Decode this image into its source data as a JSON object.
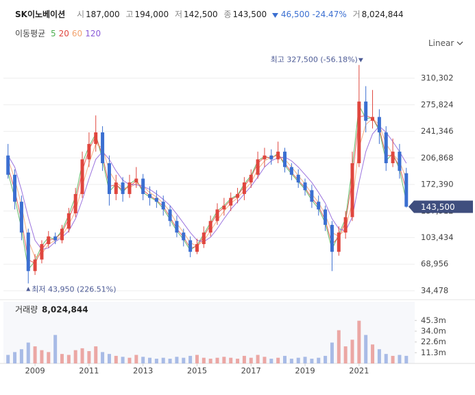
{
  "chart_data": {
    "type": "candlestick",
    "title": "SK이노베이션",
    "quote": [
      {
        "label": "시",
        "value": "187,000"
      },
      {
        "label": "고",
        "value": "194,000"
      },
      {
        "label": "저",
        "value": "142,500"
      },
      {
        "label": "종",
        "value": "143,500"
      }
    ],
    "change": "46,500",
    "change_pct": "-24.47%",
    "volume_short_label": "거",
    "volume_total": "8,024,844",
    "legend_title": "이동평균",
    "scale_label": "Linear",
    "annotations": [
      "최고 327,500 (-56.18%)",
      "최저 43,950 (226.51%)"
    ],
    "colors": {
      "up": "#e0463e",
      "down": "#3b6fd1",
      "up_volume": "#eba7a4",
      "down_volume": "#a8bbe6"
    },
    "x": [
      2008.0,
      2008.25,
      2008.5,
      2008.75,
      2009.0,
      2009.25,
      2009.5,
      2009.75,
      2010.0,
      2010.25,
      2010.5,
      2010.75,
      2011.0,
      2011.25,
      2011.5,
      2011.75,
      2012.0,
      2012.25,
      2012.5,
      2012.75,
      2013.0,
      2013.25,
      2013.5,
      2013.75,
      2014.0,
      2014.25,
      2014.5,
      2014.75,
      2015.0,
      2015.25,
      2015.5,
      2015.75,
      2016.0,
      2016.25,
      2016.5,
      2016.75,
      2017.0,
      2017.25,
      2017.5,
      2017.75,
      2018.0,
      2018.25,
      2018.5,
      2018.75,
      2019.0,
      2019.25,
      2019.5,
      2019.75,
      2020.0,
      2020.25,
      2020.5,
      2020.75,
      2021.0,
      2021.25,
      2021.5,
      2021.75,
      2022.0,
      2022.25,
      2022.5,
      2022.75
    ],
    "open": [
      210000,
      185000,
      150000,
      110000,
      60000,
      75000,
      95000,
      105000,
      100000,
      115000,
      135000,
      160000,
      205000,
      225000,
      240000,
      200000,
      160000,
      175000,
      160000,
      175000,
      180000,
      160000,
      155000,
      150000,
      140000,
      125000,
      110000,
      100000,
      85000,
      95000,
      110000,
      125000,
      140000,
      145000,
      155000,
      160000,
      175000,
      185000,
      205000,
      210000,
      205000,
      215000,
      195000,
      185000,
      175000,
      165000,
      150000,
      140000,
      120000,
      85000,
      110000,
      130000,
      200000,
      280000,
      255000,
      260000,
      240000,
      200000,
      215000,
      187000
    ],
    "high": [
      225000,
      192000,
      158000,
      115000,
      82000,
      100000,
      112000,
      110000,
      120000,
      142000,
      168000,
      215000,
      240000,
      262000,
      248000,
      210000,
      185000,
      182000,
      185000,
      195000,
      186000,
      170000,
      165000,
      158000,
      145000,
      132000,
      115000,
      105000,
      102000,
      118000,
      132000,
      148000,
      155000,
      162000,
      168000,
      182000,
      192000,
      215000,
      220000,
      218000,
      228000,
      220000,
      200000,
      192000,
      180000,
      172000,
      158000,
      145000,
      125000,
      118000,
      138000,
      215000,
      327500,
      300000,
      295000,
      270000,
      248000,
      232000,
      225000,
      194000
    ],
    "low": [
      180000,
      140000,
      100000,
      43950,
      55000,
      70000,
      90000,
      95000,
      96000,
      110000,
      130000,
      155000,
      195000,
      215000,
      190000,
      145000,
      152000,
      150000,
      155000,
      168000,
      152000,
      145000,
      142000,
      132000,
      118000,
      104000,
      92000,
      78000,
      82000,
      90000,
      105000,
      120000,
      132000,
      138000,
      148000,
      152000,
      168000,
      180000,
      195000,
      198000,
      200000,
      188000,
      178000,
      168000,
      158000,
      142000,
      132000,
      112000,
      60000,
      80000,
      102000,
      125000,
      195000,
      240000,
      245000,
      225000,
      190000,
      195000,
      180000,
      142500
    ],
    "close": [
      185000,
      150000,
      110000,
      60000,
      75000,
      95000,
      105000,
      100000,
      115000,
      135000,
      160000,
      205000,
      225000,
      240000,
      200000,
      160000,
      175000,
      160000,
      175000,
      180000,
      160000,
      155000,
      150000,
      140000,
      125000,
      110000,
      100000,
      85000,
      95000,
      110000,
      125000,
      140000,
      145000,
      155000,
      160000,
      175000,
      185000,
      205000,
      210000,
      205000,
      215000,
      195000,
      185000,
      175000,
      165000,
      150000,
      140000,
      120000,
      85000,
      110000,
      130000,
      200000,
      280000,
      255000,
      260000,
      240000,
      200000,
      215000,
      190000,
      143500
    ],
    "series": [
      {
        "name": "5",
        "color": "#4caf50",
        "values": [
          188000,
          155000,
          115000,
          62000,
          73000,
          93000,
          104000,
          101000,
          113000,
          133000,
          157000,
          200000,
          222000,
          238000,
          204000,
          163000,
          173000,
          162000,
          173000,
          179000,
          162000,
          156000,
          151000,
          141000,
          127000,
          112000,
          101000,
          87000,
          94000,
          108000,
          123000,
          138000,
          145000,
          154000,
          159000,
          173000,
          184000,
          203000,
          209000,
          206000,
          213000,
          197000,
          186000,
          176000,
          166000,
          152000,
          141000,
          122000,
          88000,
          108000,
          128000,
          195000,
          275000,
          258000,
          259000,
          242000,
          203000,
          213000,
          192000,
          150000
        ]
      },
      {
        "name": "20",
        "color": "#e0463e",
        "values": [
          195000,
          165000,
          125000,
          75000,
          70000,
          88000,
          100000,
          102000,
          110000,
          128000,
          150000,
          190000,
          218000,
          235000,
          210000,
          170000,
          172000,
          165000,
          170000,
          177000,
          165000,
          158000,
          152000,
          144000,
          130000,
          115000,
          104000,
          90000,
          92000,
          105000,
          120000,
          135000,
          143000,
          152000,
          158000,
          170000,
          182000,
          200000,
          208000,
          207000,
          211000,
          200000,
          188000,
          178000,
          168000,
          155000,
          144000,
          126000,
          95000,
          104000,
          124000,
          180000,
          260000,
          262000,
          258000,
          245000,
          210000,
          210000,
          196000,
          165000
        ]
      },
      {
        "name": "60",
        "color": "#f2a26e",
        "values": [
          205000,
          180000,
          145000,
          100000,
          78000,
          82000,
          95000,
          100000,
          106000,
          120000,
          138000,
          170000,
          200000,
          225000,
          220000,
          190000,
          175000,
          168000,
          168000,
          174000,
          170000,
          162000,
          156000,
          148000,
          137000,
          122000,
          110000,
          97000,
          92000,
          100000,
          112000,
          126000,
          138000,
          148000,
          155000,
          165000,
          175000,
          192000,
          203000,
          208000,
          210000,
          205000,
          195000,
          184000,
          173000,
          160000,
          149000,
          133000,
          110000,
          105000,
          115000,
          150000,
          220000,
          250000,
          258000,
          250000,
          225000,
          212000,
          202000,
          180000
        ]
      },
      {
        "name": "120",
        "color": "#8a5ad8",
        "values": [
          210000,
          195000,
          165000,
          130000,
          100000,
          88000,
          90000,
          98000,
          104000,
          112000,
          128000,
          152000,
          180000,
          205000,
          215000,
          205000,
          190000,
          178000,
          172000,
          172000,
          170000,
          166000,
          160000,
          153000,
          145000,
          134000,
          122000,
          110000,
          100000,
          98000,
          104000,
          115000,
          128000,
          140000,
          150000,
          160000,
          170000,
          182000,
          195000,
          203000,
          207000,
          208000,
          203000,
          195000,
          185000,
          175000,
          162000,
          148000,
          128000,
          115000,
          112000,
          130000,
          175000,
          215000,
          238000,
          248000,
          240000,
          228000,
          215000,
          200000
        ]
      }
    ],
    "xlim": [
      2007.83,
      2023.06
    ],
    "xticks": [
      2009,
      2011,
      2013,
      2015,
      2017,
      2019,
      2021
    ],
    "ylim": [
      24678,
      336138
    ],
    "yticks": [
      {
        "value": 34478,
        "label": "34,478"
      },
      {
        "value": 68956,
        "label": "68,956"
      },
      {
        "value": 103434,
        "label": "103,434"
      },
      {
        "value": 137912,
        "label": "137,912"
      },
      {
        "value": 172390,
        "label": "172,390"
      },
      {
        "value": 206868,
        "label": "206,868"
      },
      {
        "value": 241346,
        "label": "241,346"
      },
      {
        "value": 275824,
        "label": "275,824"
      },
      {
        "value": 310302,
        "label": "310,302"
      }
    ],
    "grid": true,
    "volume": {
      "title": "거래량",
      "values": [
        9000000,
        12000000,
        15000000,
        22000000,
        18000000,
        14000000,
        12000000,
        30000000,
        10000000,
        9000000,
        14000000,
        16000000,
        13000000,
        18000000,
        12000000,
        10000000,
        8000000,
        7000000,
        6000000,
        9000000,
        7000000,
        6000000,
        5000000,
        6000000,
        5000000,
        7000000,
        6000000,
        8000000,
        9000000,
        6000000,
        5000000,
        6000000,
        7000000,
        6000000,
        5000000,
        8000000,
        6000000,
        9000000,
        7000000,
        5000000,
        6000000,
        8000000,
        5000000,
        6000000,
        7000000,
        5000000,
        6000000,
        8000000,
        22000000,
        35000000,
        18000000,
        25000000,
        45000000,
        30000000,
        20000000,
        15000000,
        10000000,
        8000000,
        9000000,
        8024844
      ],
      "ylim": [
        0,
        65000000
      ],
      "yticks": [
        {
          "value": 11300000,
          "label": "11.3m"
        },
        {
          "value": 22600000,
          "label": "22.6m"
        },
        {
          "value": 34000000,
          "label": "34.0m"
        },
        {
          "value": 45300000,
          "label": "45.3m"
        }
      ]
    }
  }
}
